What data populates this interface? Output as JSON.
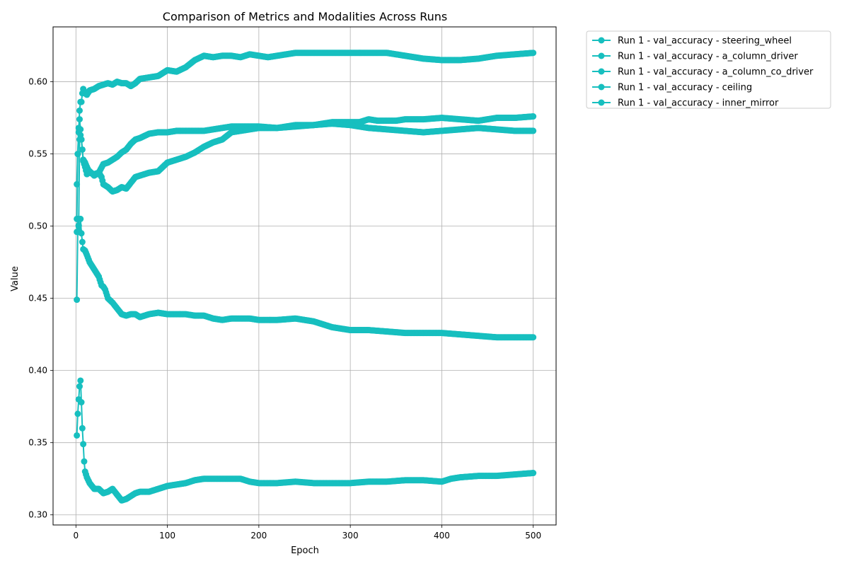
{
  "chart_data": {
    "type": "line",
    "title": "Comparison of Metrics and Modalities Across Runs",
    "xlabel": "Epoch",
    "ylabel": "Value",
    "xlim": [
      -25,
      525
    ],
    "ylim": [
      0.293,
      0.638
    ],
    "xticks": [
      0,
      100,
      200,
      300,
      400,
      500
    ],
    "yticks": [
      0.3,
      0.35,
      0.4,
      0.45,
      0.5,
      0.55,
      0.6
    ],
    "grid": true,
    "legend_position": "outside-top-right",
    "series_color": "#17bfbf",
    "series": [
      {
        "name": "Run 1 - val_accuracy - steering_wheel",
        "points": [
          [
            1,
            0.529
          ],
          [
            2,
            0.55
          ],
          [
            3,
            0.565
          ],
          [
            4,
            0.58
          ],
          [
            5,
            0.586
          ],
          [
            6,
            0.586
          ],
          [
            7,
            0.592
          ],
          [
            8,
            0.595
          ],
          [
            10,
            0.592
          ],
          [
            12,
            0.591
          ],
          [
            15,
            0.594
          ],
          [
            20,
            0.595
          ],
          [
            25,
            0.597
          ],
          [
            30,
            0.598
          ],
          [
            35,
            0.599
          ],
          [
            40,
            0.598
          ],
          [
            45,
            0.6
          ],
          [
            50,
            0.599
          ],
          [
            55,
            0.599
          ],
          [
            60,
            0.597
          ],
          [
            65,
            0.599
          ],
          [
            70,
            0.602
          ],
          [
            80,
            0.603
          ],
          [
            90,
            0.604
          ],
          [
            100,
            0.608
          ],
          [
            110,
            0.607
          ],
          [
            120,
            0.61
          ],
          [
            130,
            0.615
          ],
          [
            140,
            0.618
          ],
          [
            150,
            0.617
          ],
          [
            160,
            0.618
          ],
          [
            170,
            0.618
          ],
          [
            180,
            0.617
          ],
          [
            190,
            0.619
          ],
          [
            200,
            0.618
          ],
          [
            210,
            0.617
          ],
          [
            220,
            0.618
          ],
          [
            230,
            0.619
          ],
          [
            240,
            0.62
          ],
          [
            260,
            0.62
          ],
          [
            280,
            0.62
          ],
          [
            300,
            0.62
          ],
          [
            320,
            0.62
          ],
          [
            340,
            0.62
          ],
          [
            360,
            0.618
          ],
          [
            380,
            0.616
          ],
          [
            400,
            0.615
          ],
          [
            420,
            0.615
          ],
          [
            440,
            0.616
          ],
          [
            460,
            0.618
          ],
          [
            480,
            0.619
          ],
          [
            500,
            0.62
          ]
        ]
      },
      {
        "name": "Run 1 - val_accuracy - a_column_driver",
        "points": [
          [
            1,
            0.505
          ],
          [
            2,
            0.55
          ],
          [
            3,
            0.568
          ],
          [
            4,
            0.574
          ],
          [
            5,
            0.567
          ],
          [
            6,
            0.56
          ],
          [
            7,
            0.553
          ],
          [
            8,
            0.546
          ],
          [
            10,
            0.544
          ],
          [
            12,
            0.541
          ],
          [
            15,
            0.537
          ],
          [
            20,
            0.536
          ],
          [
            25,
            0.537
          ],
          [
            30,
            0.543
          ],
          [
            35,
            0.544
          ],
          [
            40,
            0.546
          ],
          [
            45,
            0.548
          ],
          [
            50,
            0.551
          ],
          [
            55,
            0.553
          ],
          [
            60,
            0.557
          ],
          [
            65,
            0.56
          ],
          [
            70,
            0.561
          ],
          [
            80,
            0.564
          ],
          [
            90,
            0.565
          ],
          [
            100,
            0.565
          ],
          [
            110,
            0.566
          ],
          [
            120,
            0.566
          ],
          [
            130,
            0.566
          ],
          [
            140,
            0.566
          ],
          [
            150,
            0.567
          ],
          [
            160,
            0.568
          ],
          [
            170,
            0.569
          ],
          [
            180,
            0.569
          ],
          [
            190,
            0.569
          ],
          [
            200,
            0.569
          ],
          [
            220,
            0.568
          ],
          [
            240,
            0.57
          ],
          [
            260,
            0.57
          ],
          [
            280,
            0.572
          ],
          [
            300,
            0.572
          ],
          [
            310,
            0.572
          ],
          [
            320,
            0.574
          ],
          [
            330,
            0.573
          ],
          [
            340,
            0.573
          ],
          [
            350,
            0.573
          ],
          [
            360,
            0.574
          ],
          [
            380,
            0.574
          ],
          [
            400,
            0.575
          ],
          [
            420,
            0.574
          ],
          [
            440,
            0.573
          ],
          [
            460,
            0.575
          ],
          [
            480,
            0.575
          ],
          [
            500,
            0.576
          ]
        ]
      },
      {
        "name": "Run 1 - val_accuracy - a_column_co_driver",
        "points": [
          [
            1,
            0.449
          ],
          [
            2,
            0.496
          ],
          [
            3,
            0.5
          ],
          [
            4,
            0.56
          ],
          [
            5,
            0.563
          ],
          [
            6,
            0.56
          ],
          [
            7,
            0.553
          ],
          [
            8,
            0.545
          ],
          [
            10,
            0.541
          ],
          [
            12,
            0.536
          ],
          [
            15,
            0.538
          ],
          [
            20,
            0.535
          ],
          [
            25,
            0.537
          ],
          [
            28,
            0.534
          ],
          [
            30,
            0.529
          ],
          [
            35,
            0.527
          ],
          [
            40,
            0.524
          ],
          [
            45,
            0.525
          ],
          [
            50,
            0.527
          ],
          [
            55,
            0.526
          ],
          [
            60,
            0.53
          ],
          [
            65,
            0.534
          ],
          [
            70,
            0.535
          ],
          [
            80,
            0.537
          ],
          [
            90,
            0.538
          ],
          [
            100,
            0.544
          ],
          [
            110,
            0.546
          ],
          [
            120,
            0.548
          ],
          [
            130,
            0.551
          ],
          [
            140,
            0.555
          ],
          [
            150,
            0.558
          ],
          [
            160,
            0.56
          ],
          [
            170,
            0.565
          ],
          [
            180,
            0.566
          ],
          [
            190,
            0.567
          ],
          [
            200,
            0.568
          ],
          [
            220,
            0.568
          ],
          [
            240,
            0.569
          ],
          [
            260,
            0.57
          ],
          [
            280,
            0.571
          ],
          [
            300,
            0.57
          ],
          [
            310,
            0.569
          ],
          [
            320,
            0.568
          ],
          [
            340,
            0.567
          ],
          [
            360,
            0.566
          ],
          [
            380,
            0.565
          ],
          [
            400,
            0.566
          ],
          [
            420,
            0.567
          ],
          [
            440,
            0.568
          ],
          [
            460,
            0.567
          ],
          [
            480,
            0.566
          ],
          [
            500,
            0.566
          ]
        ]
      },
      {
        "name": "Run 1 - val_accuracy - ceiling",
        "points": [
          [
            1,
            0.496
          ],
          [
            2,
            0.505
          ],
          [
            4,
            0.496
          ],
          [
            5,
            0.505
          ],
          [
            6,
            0.495
          ],
          [
            7,
            0.489
          ],
          [
            8,
            0.484
          ],
          [
            10,
            0.483
          ],
          [
            12,
            0.48
          ],
          [
            15,
            0.475
          ],
          [
            20,
            0.47
          ],
          [
            25,
            0.465
          ],
          [
            28,
            0.459
          ],
          [
            30,
            0.458
          ],
          [
            32,
            0.456
          ],
          [
            35,
            0.45
          ],
          [
            40,
            0.447
          ],
          [
            45,
            0.443
          ],
          [
            50,
            0.439
          ],
          [
            55,
            0.438
          ],
          [
            60,
            0.439
          ],
          [
            65,
            0.439
          ],
          [
            70,
            0.437
          ],
          [
            80,
            0.439
          ],
          [
            90,
            0.44
          ],
          [
            100,
            0.439
          ],
          [
            110,
            0.439
          ],
          [
            120,
            0.439
          ],
          [
            130,
            0.438
          ],
          [
            140,
            0.438
          ],
          [
            150,
            0.436
          ],
          [
            160,
            0.435
          ],
          [
            170,
            0.436
          ],
          [
            180,
            0.436
          ],
          [
            190,
            0.436
          ],
          [
            200,
            0.435
          ],
          [
            220,
            0.435
          ],
          [
            240,
            0.436
          ],
          [
            250,
            0.435
          ],
          [
            260,
            0.434
          ],
          [
            270,
            0.432
          ],
          [
            280,
            0.43
          ],
          [
            290,
            0.429
          ],
          [
            300,
            0.428
          ],
          [
            320,
            0.428
          ],
          [
            340,
            0.427
          ],
          [
            360,
            0.426
          ],
          [
            380,
            0.426
          ],
          [
            400,
            0.426
          ],
          [
            420,
            0.425
          ],
          [
            440,
            0.424
          ],
          [
            460,
            0.423
          ],
          [
            480,
            0.423
          ],
          [
            500,
            0.423
          ]
        ]
      },
      {
        "name": "Run 1 - val_accuracy - inner_mirror",
        "points": [
          [
            1,
            0.355
          ],
          [
            2,
            0.37
          ],
          [
            3,
            0.38
          ],
          [
            4,
            0.389
          ],
          [
            5,
            0.393
          ],
          [
            6,
            0.378
          ],
          [
            7,
            0.36
          ],
          [
            8,
            0.349
          ],
          [
            9,
            0.337
          ],
          [
            10,
            0.33
          ],
          [
            12,
            0.326
          ],
          [
            15,
            0.322
          ],
          [
            20,
            0.318
          ],
          [
            25,
            0.318
          ],
          [
            30,
            0.315
          ],
          [
            35,
            0.316
          ],
          [
            40,
            0.318
          ],
          [
            45,
            0.314
          ],
          [
            50,
            0.31
          ],
          [
            55,
            0.311
          ],
          [
            60,
            0.313
          ],
          [
            65,
            0.315
          ],
          [
            70,
            0.316
          ],
          [
            80,
            0.316
          ],
          [
            90,
            0.318
          ],
          [
            100,
            0.32
          ],
          [
            110,
            0.321
          ],
          [
            120,
            0.322
          ],
          [
            130,
            0.324
          ],
          [
            140,
            0.325
          ],
          [
            150,
            0.325
          ],
          [
            160,
            0.325
          ],
          [
            170,
            0.325
          ],
          [
            180,
            0.325
          ],
          [
            190,
            0.323
          ],
          [
            200,
            0.322
          ],
          [
            220,
            0.322
          ],
          [
            240,
            0.323
          ],
          [
            260,
            0.322
          ],
          [
            280,
            0.322
          ],
          [
            300,
            0.322
          ],
          [
            320,
            0.323
          ],
          [
            340,
            0.323
          ],
          [
            360,
            0.324
          ],
          [
            380,
            0.324
          ],
          [
            400,
            0.323
          ],
          [
            410,
            0.325
          ],
          [
            420,
            0.326
          ],
          [
            440,
            0.327
          ],
          [
            460,
            0.327
          ],
          [
            480,
            0.328
          ],
          [
            500,
            0.329
          ]
        ]
      }
    ]
  }
}
